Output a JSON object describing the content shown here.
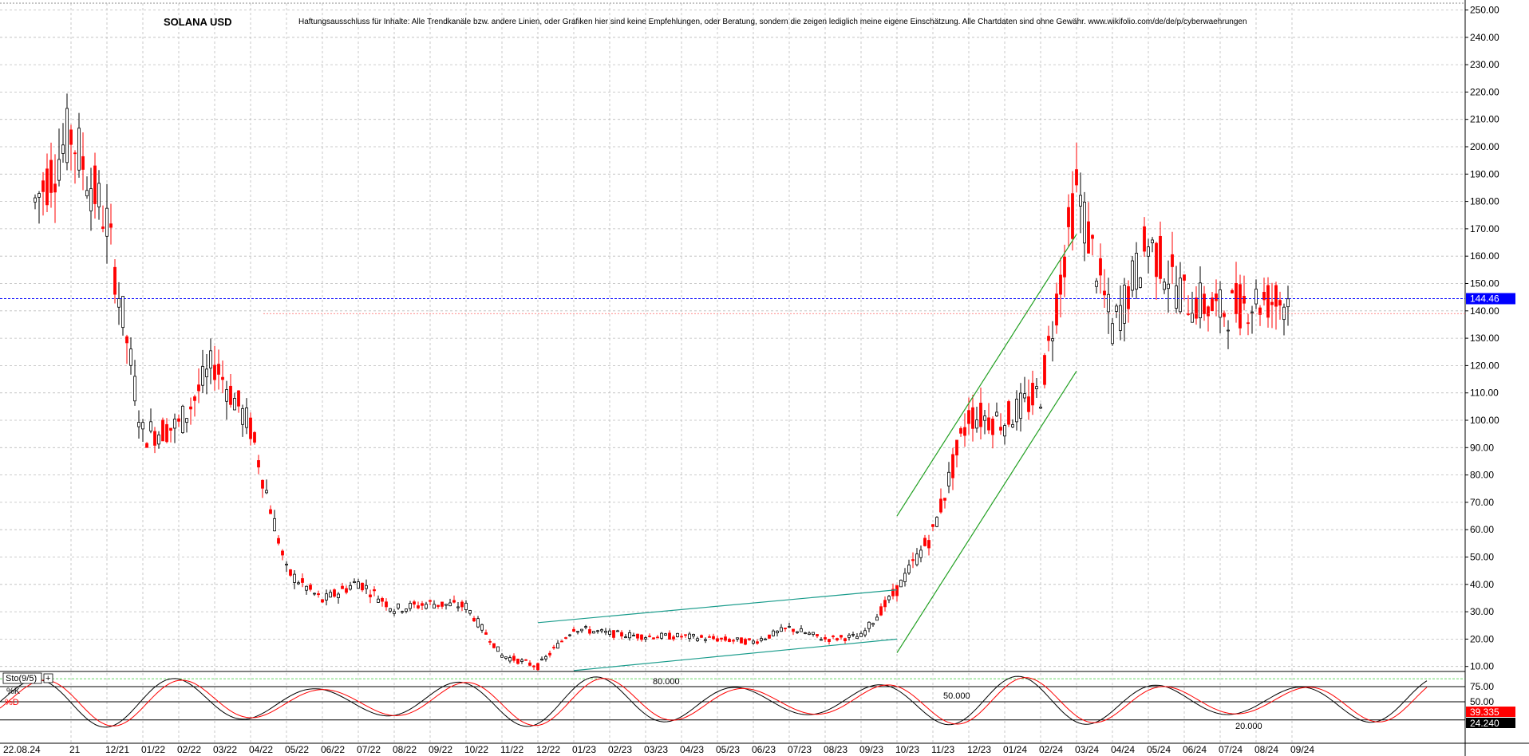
{
  "header": {
    "symbol_title": "SOLANA USD",
    "disclaimer": "Haftungsausschluss für Inhalte: Alle Trendkanäle bzw. andere Linien, oder Grafiken hier sind keine Empfehlungen, oder Beratung, sondern die zeigen lediglich meine eigene Einschätzung. Alle Chartdaten sind ohne Gewähr. www.wikifolio.com/de/de/p/cyberwaehrungen"
  },
  "chart_data": [
    {
      "type": "candlestick",
      "title": "SOLANA USD",
      "y_axis_side": "right",
      "ylim": [
        5,
        255
      ],
      "y_ticks": [
        "250.00",
        "240.00",
        "230.00",
        "220.00",
        "210.00",
        "200.00",
        "190.00",
        "180.00",
        "170.00",
        "160.00",
        "150.00",
        "140.00",
        "130.00",
        "120.00",
        "110.00",
        "100.00",
        "90.00",
        "80.00",
        "70.00",
        "60.00",
        "50.00",
        "40.00",
        "30.00",
        "20.00",
        "10.00"
      ],
      "x_ticks": [
        "22.08.24",
        "11/21",
        "12/21",
        "01/22",
        "02/22",
        "03/22",
        "04/22",
        "05/22",
        "06/22",
        "07/22",
        "08/22",
        "09/22",
        "10/22",
        "11/22",
        "12/22",
        "01/23",
        "02/23",
        "03/23",
        "04/23",
        "05/23",
        "06/23",
        "07/23",
        "08/23",
        "09/23",
        "10/23",
        "11/23",
        "12/23",
        "01/24",
        "02/24",
        "03/24",
        "04/24",
        "05/24",
        "06/24",
        "07/24",
        "08/24",
        "09/24"
      ],
      "x_tick_labels_printed": [
        "22.08.24",
        "21",
        "12/21",
        "01/22",
        "02/22",
        "03/22",
        "04/22",
        "05/22",
        "06/22",
        "07/22",
        "08/22",
        "09/22",
        "10/22",
        "11/22",
        "12/22",
        "01/23",
        "02/23",
        "03/23",
        "04/23",
        "05/23",
        "06/23",
        "07/23",
        "08/23",
        "09/23",
        "10/23",
        "11/23",
        "12/23",
        "01/24",
        "02/24",
        "03/24",
        "04/24",
        "05/24",
        "06/24",
        "07/24",
        "08/24",
        "09/24"
      ],
      "grid": true,
      "current_price_label": "144.46",
      "current_price": 144.46,
      "reference_line": 139.0,
      "monthly_closes": [
        {
          "month": "10/21",
          "value": 180
        },
        {
          "month": "11/21",
          "value": 205
        },
        {
          "month": "12/21",
          "value": 172
        },
        {
          "month": "01/22",
          "value": 95
        },
        {
          "month": "02/22",
          "value": 98
        },
        {
          "month": "03/22",
          "value": 121
        },
        {
          "month": "04/22",
          "value": 97
        },
        {
          "month": "05/22",
          "value": 45
        },
        {
          "month": "06/22",
          "value": 34
        },
        {
          "month": "07/22",
          "value": 41
        },
        {
          "month": "08/22",
          "value": 31
        },
        {
          "month": "09/22",
          "value": 33
        },
        {
          "month": "10/22",
          "value": 32
        },
        {
          "month": "11/22",
          "value": 14
        },
        {
          "month": "12/22",
          "value": 10
        },
        {
          "month": "01/23",
          "value": 24
        },
        {
          "month": "02/23",
          "value": 22
        },
        {
          "month": "03/23",
          "value": 21
        },
        {
          "month": "04/23",
          "value": 21
        },
        {
          "month": "05/23",
          "value": 20
        },
        {
          "month": "06/23",
          "value": 19
        },
        {
          "month": "07/23",
          "value": 24
        },
        {
          "month": "08/23",
          "value": 20
        },
        {
          "month": "09/23",
          "value": 21
        },
        {
          "month": "10/23",
          "value": 38
        },
        {
          "month": "11/23",
          "value": 59
        },
        {
          "month": "12/23",
          "value": 102
        },
        {
          "month": "01/24",
          "value": 100
        },
        {
          "month": "02/24",
          "value": 110
        },
        {
          "month": "03/24",
          "value": 185
        },
        {
          "month": "04/24",
          "value": 133
        },
        {
          "month": "05/24",
          "value": 165
        },
        {
          "month": "06/24",
          "value": 145
        },
        {
          "month": "07/24",
          "value": 140
        },
        {
          "month": "08/24",
          "value": 144
        },
        {
          "month": "09/24",
          "value": 144
        }
      ],
      "trendlines": [
        {
          "name": "lower-channel-2023-low",
          "color": "#1a9c8c",
          "from": {
            "month": "01/23",
            "value": 8.5
          },
          "to": {
            "month": "10/23",
            "value": 20
          }
        },
        {
          "name": "upper-channel-2023-high",
          "color": "#1a9c8c",
          "from": {
            "month": "12/22",
            "value": 26
          },
          "to": {
            "month": "10/23",
            "value": 38
          }
        },
        {
          "name": "uptrend-upper",
          "color": "#22a022",
          "from": {
            "month": "10/23",
            "value": 65
          },
          "to": {
            "month": "03/24",
            "value": 168
          }
        },
        {
          "name": "uptrend-lower",
          "color": "#22a022",
          "from": {
            "month": "10/23",
            "value": 15
          },
          "to": {
            "month": "03/24",
            "value": 118
          }
        }
      ],
      "colors": {
        "up": "#000000",
        "down": "#ff0000",
        "price_line": "#0000ff",
        "reference_line": "#ff6666",
        "grid": "#bbbbbb"
      }
    },
    {
      "type": "line",
      "title": "Sto(9/5)",
      "ylim": [
        0,
        100
      ],
      "series": [
        {
          "name": "%K",
          "color": "#000000"
        },
        {
          "name": "%D",
          "color": "#ff0000"
        }
      ],
      "levels": [
        {
          "label": "80.000",
          "value": 80
        },
        {
          "label": "75.00",
          "value": 75
        },
        {
          "label": "50.000",
          "value": 50
        },
        {
          "label": "50.00",
          "value": 50
        },
        {
          "label": "20.000",
          "value": 20
        }
      ],
      "right_labels": {
        "k_value": "39.335",
        "d_value": "24.240"
      }
    }
  ]
}
